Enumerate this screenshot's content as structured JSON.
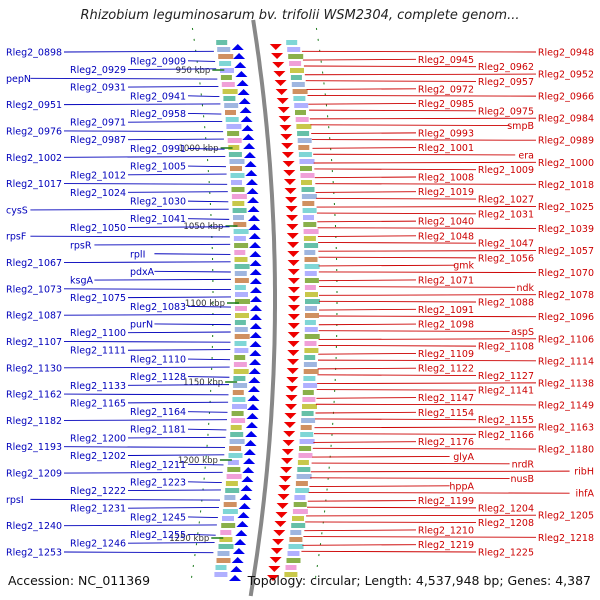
{
  "title": "Rhizobium leguminosarum bv. trifolii WSM2304, complete genom...",
  "footer": {
    "accession": "Accession: NC_011369",
    "summary": "Topology: circular; Length: 4,537,948 bp; Genes: 4,387"
  },
  "colors": {
    "forward_strand": "#0000ee",
    "reverse_strand": "#ee0000",
    "left_labels": "#0000bb",
    "right_labels": "#cc0000",
    "backbone": "#888888",
    "tick": "#1a7a1a"
  },
  "ticks": [
    "950 kbp",
    "1000 kbp",
    "1050 kbp",
    "1100 kbp",
    "1150 kbp",
    "1200 kbp",
    "1250 kbp"
  ],
  "left_labels": [
    "Rleg2_0898",
    "Rleg2_0909",
    "Rleg2_0929",
    "pepN",
    "Rleg2_0931",
    "Rleg2_0941",
    "Rleg2_0951",
    "Rleg2_0958",
    "Rleg2_0971",
    "Rleg2_0976",
    "Rleg2_0987",
    "Rleg2_0991",
    "Rleg2_1002",
    "Rleg2_1005",
    "Rleg2_1012",
    "Rleg2_1017",
    "Rleg2_1024",
    "Rleg2_1030",
    "cysS",
    "Rleg2_1041",
    "Rleg2_1050",
    "rpsF",
    "rpsR",
    "rplI",
    "Rleg2_1067",
    "pdxA",
    "ksgA",
    "Rleg2_1073",
    "Rleg2_1075",
    "Rleg2_1083",
    "Rleg2_1087",
    "purN",
    "Rleg2_1100",
    "Rleg2_1107",
    "Rleg2_1111",
    "Rleg2_1110",
    "Rleg2_1130",
    "Rleg2_1128",
    "Rleg2_1133",
    "Rleg2_1162",
    "Rleg2_1165",
    "Rleg2_1164",
    "Rleg2_1182",
    "Rleg2_1181",
    "Rleg2_1200",
    "Rleg2_1193",
    "Rleg2_1202",
    "Rleg2_1211",
    "Rleg2_1209",
    "Rleg2_1223",
    "Rleg2_1222",
    "rpsI",
    "Rleg2_1231",
    "Rleg2_1245",
    "Rleg2_1240",
    "Rleg2_1255",
    "Rleg2_1246",
    "Rleg2_1253"
  ],
  "right_labels": [
    "Rleg2_0948",
    "Rleg2_0945",
    "Rleg2_0962",
    "Rleg2_0952",
    "Rleg2_0957",
    "Rleg2_0972",
    "Rleg2_0966",
    "Rleg2_0985",
    "Rleg2_0975",
    "Rleg2_0984",
    "smpB",
    "Rleg2_0993",
    "Rleg2_0989",
    "Rleg2_1001",
    "era",
    "Rleg2_1000",
    "Rleg2_1009",
    "Rleg2_1008",
    "Rleg2_1018",
    "Rleg2_1019",
    "Rleg2_1027",
    "Rleg2_1025",
    "Rleg2_1031",
    "Rleg2_1040",
    "Rleg2_1039",
    "Rleg2_1048",
    "Rleg2_1047",
    "Rleg2_1057",
    "Rleg2_1056",
    "gmk",
    "Rleg2_1070",
    "Rleg2_1071",
    "ndk",
    "Rleg2_1078",
    "Rleg2_1088",
    "Rleg2_1091",
    "Rleg2_1096",
    "Rleg2_1098",
    "aspS",
    "Rleg2_1106",
    "Rleg2_1108",
    "Rleg2_1109",
    "Rleg2_1114",
    "Rleg2_1122",
    "Rleg2_1127",
    "Rleg2_1138",
    "Rleg2_1141",
    "Rleg2_1147",
    "Rleg2_1149",
    "Rleg2_1154",
    "Rleg2_1155",
    "Rleg2_1163",
    "Rleg2_1166",
    "Rleg2_1176",
    "Rleg2_1180",
    "glyA",
    "nrdR",
    "ribH",
    "nusB",
    "hppA",
    "ihfA",
    "Rleg2_1199",
    "Rleg2_1204",
    "Rleg2_1205",
    "Rleg2_1208",
    "Rleg2_1210",
    "Rleg2_1218",
    "Rleg2_1219",
    "Rleg2_1225"
  ]
}
